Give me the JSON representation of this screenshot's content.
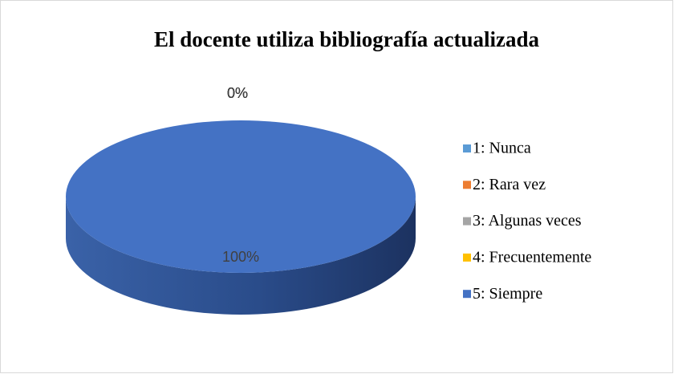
{
  "chart_data": {
    "type": "pie",
    "title": "El docente utiliza bibliografía actualizada",
    "categories": [
      "1: Nunca",
      "2: Rara vez",
      "3: Algunas veces",
      "4: Frecuentemente",
      "5: Siempre"
    ],
    "values": [
      0,
      0,
      0,
      0,
      100
    ],
    "value_labels": [
      "0%",
      "0%",
      "0%",
      "0%",
      "100%"
    ],
    "colors": [
      "#5b9bd5",
      "#ed7d31",
      "#a5a5a5",
      "#ffc000",
      "#4472c4"
    ],
    "legend": "right"
  }
}
